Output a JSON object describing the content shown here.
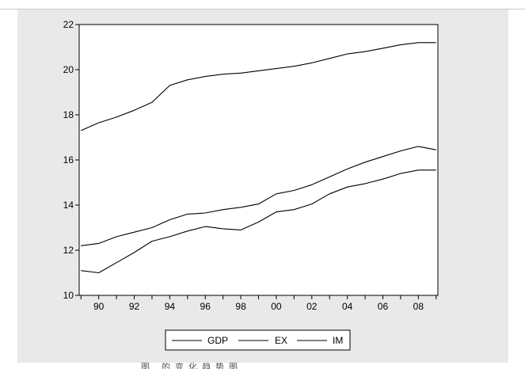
{
  "chart_data": {
    "type": "line",
    "x": [
      1989,
      1990,
      1991,
      1992,
      1993,
      1994,
      1995,
      1996,
      1997,
      1998,
      1999,
      2000,
      2001,
      2002,
      2003,
      2004,
      2005,
      2006,
      2007,
      2008,
      2009
    ],
    "series": [
      {
        "name": "GDP",
        "values": [
          17.3,
          17.65,
          17.9,
          18.2,
          18.55,
          19.3,
          19.55,
          19.7,
          19.8,
          19.85,
          19.95,
          20.05,
          20.15,
          20.3,
          20.5,
          20.7,
          20.8,
          20.95,
          21.1,
          21.2,
          21.2
        ]
      },
      {
        "name": "EX",
        "values": [
          11.1,
          11.0,
          11.45,
          11.9,
          12.4,
          12.6,
          12.85,
          13.05,
          12.95,
          12.9,
          13.25,
          13.7,
          13.8,
          14.05,
          14.5,
          14.8,
          14.95,
          15.15,
          15.4,
          15.55,
          15.55
        ]
      },
      {
        "name": "IM",
        "values": [
          12.2,
          12.3,
          12.6,
          12.8,
          13.0,
          13.35,
          13.6,
          13.65,
          13.8,
          13.9,
          14.05,
          14.5,
          14.65,
          14.9,
          15.25,
          15.6,
          15.9,
          16.15,
          16.4,
          16.6,
          16.45
        ]
      }
    ],
    "x_tick_values": [
      1990,
      1992,
      1994,
      1996,
      1998,
      2000,
      2002,
      2004,
      2006,
      2008
    ],
    "x_tick_labels": [
      "90",
      "92",
      "94",
      "96",
      "98",
      "00",
      "02",
      "04",
      "06",
      "08"
    ],
    "y_ticks": [
      10,
      12,
      14,
      16,
      18,
      20,
      22
    ],
    "ylim": [
      10,
      22
    ],
    "xlim": [
      1988.9,
      2009.1
    ],
    "grid": false,
    "legend_position": "bottom-center",
    "line_color": "#000000"
  },
  "caption": "图                    的变化趋势图"
}
